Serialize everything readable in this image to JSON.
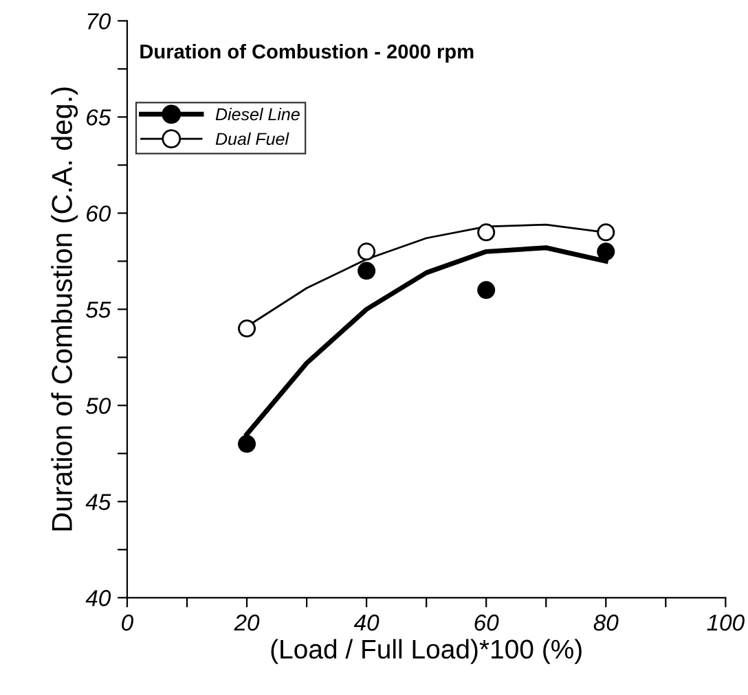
{
  "chart_data": {
    "type": "scatter",
    "title": "Duration of Combustion - 2000 rpm",
    "xlabel": "(Load / Full Load)*100 (%)",
    "ylabel": "Duration of Combustion (C.A. deg.)",
    "x": [
      20,
      40,
      60,
      80
    ],
    "series": [
      {
        "name": "Diesel Line",
        "color": "#000000",
        "marker": "circle",
        "values": [
          48,
          57,
          56,
          58
        ]
      },
      {
        "name": "Dual Fuel",
        "color": "#000000",
        "marker": "circle",
        "values": [
          54,
          58,
          59,
          59
        ]
      },
      {
        "type": "line",
        "color": "#000000",
        "x": [
          20,
          30,
          40,
          50,
          60,
          70,
          80
        ],
        "values": [
          48.5,
          52.2,
          55.0,
          56.9,
          58.0,
          58.2,
          57.5
        ]
      },
      {
        "type": "line",
        "color": "#000000",
        "x": [
          20,
          30,
          40,
          50,
          60,
          70,
          80
        ],
        "values": [
          54.1,
          56.1,
          57.6,
          58.7,
          59.3,
          59.4,
          59.0
        ]
      }
    ],
    "xlim": [
      0,
      100
    ],
    "xticks": [
      0,
      {
        "value": 10,
        "label": null
      },
      20,
      {
        "value": 30,
        "label": null
      },
      40,
      {
        "value": 50,
        "label": null
      },
      60,
      {
        "value": 70,
        "label": null
      },
      80,
      {
        "value": 90,
        "label": null
      },
      100
    ],
    "ylim": [
      40,
      70
    ],
    "yticks": [
      40,
      {
        "value": 42.5,
        "label": null
      },
      45,
      {
        "value": 47.5,
        "label": null
      },
      50,
      {
        "value": 52.5,
        "label": null
      },
      55,
      {
        "value": 57.5,
        "label": null
      },
      60,
      {
        "value": 62.5,
        "label": null
      },
      65,
      {
        "value": 67.5,
        "label": null
      },
      70
    ],
    "grid": false,
    "legend": "top left"
  }
}
